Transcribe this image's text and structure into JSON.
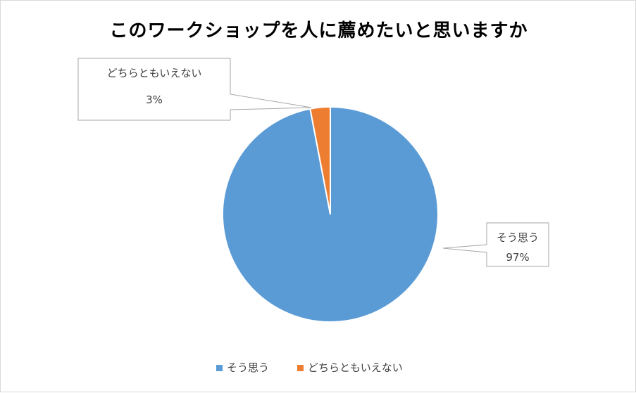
{
  "chart_data": {
    "type": "pie",
    "title": "このワークショップを人に薦めたいと思いますか",
    "categories": [
      "そう思う",
      "どちらともいえない"
    ],
    "values": [
      97,
      3
    ],
    "data_labels": [
      "97%",
      "3%"
    ],
    "colors": [
      "#5B9BD5",
      "#ED7D31"
    ],
    "legend": {
      "position": "bottom",
      "entries": [
        "そう思う",
        "どちらともいえない"
      ]
    },
    "label_style": "callout"
  }
}
